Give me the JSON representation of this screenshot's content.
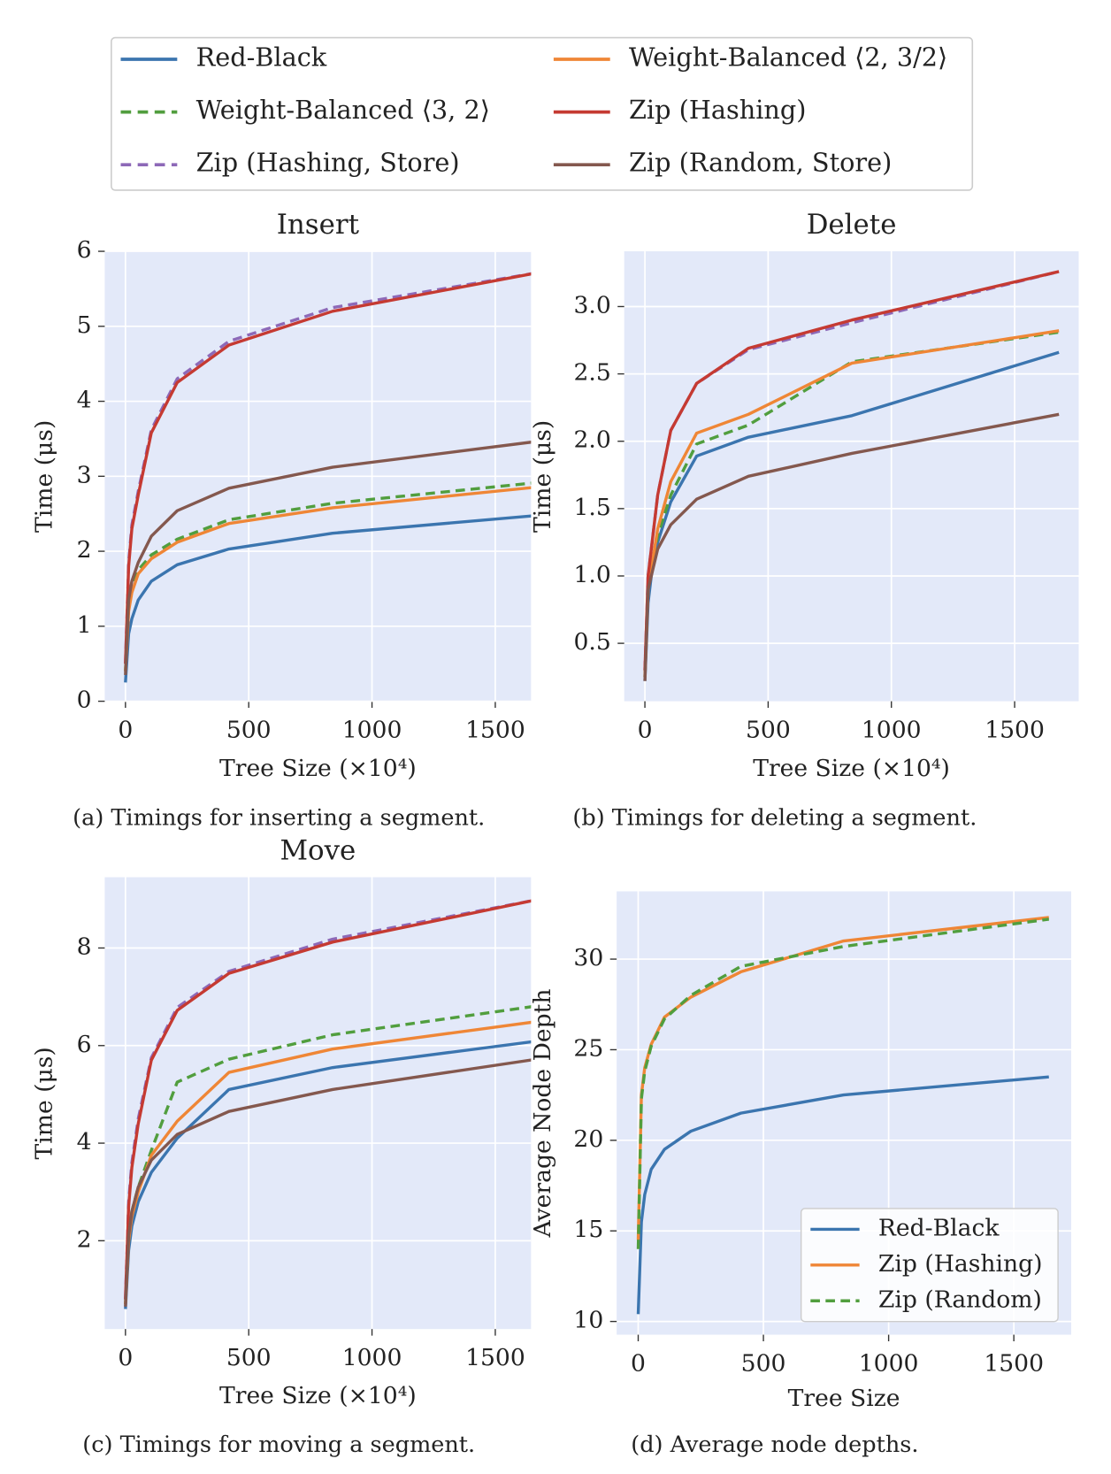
{
  "legend": {
    "columns": 2
  },
  "chart_data": [
    {
      "type": "line",
      "title": "Insert",
      "caption": "(a) Timings for inserting a segment.",
      "xlabel": "Tree Size (×10⁴)",
      "ylabel": "Time (μs)",
      "x": [
        0,
        13,
        26,
        52,
        105,
        210,
        420,
        840,
        1680
      ],
      "xlim": [
        -84,
        1645
      ],
      "ylim": [
        0,
        6
      ],
      "xticks": [
        0,
        500,
        1000,
        1500
      ],
      "yticks": [
        0,
        1,
        2,
        3,
        4,
        5,
        6
      ],
      "grid": true,
      "series": [
        {
          "name": "Red-Black",
          "color": "#3b75af",
          "dash": false,
          "values": [
            0.25,
            0.9,
            1.1,
            1.35,
            1.6,
            1.82,
            2.03,
            2.24,
            2.48
          ]
        },
        {
          "name": "Weight-Balanced ⟨3, 2⟩",
          "color": "#519e3e",
          "dash": true,
          "values": [
            0.4,
            1.25,
            1.5,
            1.75,
            1.95,
            2.16,
            2.42,
            2.64,
            2.92
          ]
        },
        {
          "name": "Zip (Hashing, Store)",
          "color": "#8d69b8",
          "dash": true,
          "values": [
            0.5,
            1.85,
            2.35,
            2.8,
            3.62,
            4.3,
            4.8,
            5.25,
            5.72
          ]
        },
        {
          "name": "Weight-Balanced ⟨2, 3/2⟩",
          "color": "#ef8636",
          "dash": false,
          "values": [
            0.4,
            1.2,
            1.45,
            1.7,
            1.9,
            2.12,
            2.37,
            2.58,
            2.86
          ]
        },
        {
          "name": "Zip (Hashing)",
          "color": "#c53a32",
          "dash": false,
          "values": [
            0.5,
            1.8,
            2.3,
            2.75,
            3.58,
            4.25,
            4.75,
            5.2,
            5.72
          ]
        },
        {
          "name": "Zip (Random, Store)",
          "color": "#84584e",
          "dash": false,
          "values": [
            0.35,
            1.35,
            1.6,
            1.85,
            2.2,
            2.54,
            2.84,
            3.12,
            3.47
          ]
        }
      ]
    },
    {
      "type": "line",
      "title": "Delete",
      "caption": "(b) Timings for deleting a segment.",
      "xlabel": "Tree Size (×10⁴)",
      "ylabel": "Time (μs)",
      "x": [
        0,
        13,
        26,
        52,
        105,
        210,
        420,
        840,
        1680
      ],
      "xlim": [
        -84,
        1760
      ],
      "ylim": [
        0.07,
        3.41
      ],
      "xticks": [
        0,
        500,
        1000,
        1500
      ],
      "yticks": [
        0.5,
        {
          "value": 1,
          "label": "1.0"
        },
        1.5,
        {
          "value": 2,
          "label": "2.0"
        },
        2.5,
        {
          "value": 3,
          "label": "3.0"
        }
      ],
      "grid": true,
      "series": [
        {
          "name": "Red-Black",
          "color": "#3b75af",
          "dash": false,
          "values": [
            0.22,
            0.8,
            1.0,
            1.25,
            1.55,
            1.89,
            2.03,
            2.19,
            2.66
          ]
        },
        {
          "name": "Weight-Balanced ⟨3, 2⟩",
          "color": "#519e3e",
          "dash": true,
          "values": [
            0.25,
            0.9,
            1.05,
            1.3,
            1.6,
            1.98,
            2.12,
            2.59,
            2.81
          ]
        },
        {
          "name": "Zip (Hashing, Store)",
          "color": "#8d69b8",
          "dash": true,
          "values": [
            0.3,
            1.0,
            1.2,
            1.6,
            2.08,
            2.43,
            2.68,
            2.88,
            3.26
          ]
        },
        {
          "name": "Weight-Balanced ⟨2, 3/2⟩",
          "color": "#ef8636",
          "dash": false,
          "values": [
            0.25,
            0.9,
            1.05,
            1.35,
            1.7,
            2.06,
            2.2,
            2.58,
            2.82
          ]
        },
        {
          "name": "Zip (Hashing)",
          "color": "#c53a32",
          "dash": false,
          "values": [
            0.3,
            1.0,
            1.2,
            1.6,
            2.08,
            2.43,
            2.69,
            2.9,
            3.26
          ]
        },
        {
          "name": "Zip (Random, Store)",
          "color": "#84584e",
          "dash": false,
          "values": [
            0.22,
            0.9,
            1.0,
            1.2,
            1.38,
            1.57,
            1.74,
            1.91,
            2.2
          ]
        }
      ]
    },
    {
      "type": "line",
      "title": "Move",
      "caption": "(c) Timings for moving a segment.",
      "xlabel": "Tree Size (×10⁴)",
      "ylabel": "Time (μs)",
      "x": [
        0,
        13,
        26,
        52,
        105,
        210,
        420,
        840,
        1680
      ],
      "xlim": [
        -84,
        1645
      ],
      "ylim": [
        0.19,
        9.45
      ],
      "xticks": [
        0,
        500,
        1000,
        1500
      ],
      "yticks": [
        2,
        4,
        6,
        8
      ],
      "grid": true,
      "series": [
        {
          "name": "Red-Black",
          "color": "#3b75af",
          "dash": false,
          "values": [
            0.6,
            1.8,
            2.3,
            2.8,
            3.4,
            4.1,
            5.1,
            5.55,
            6.1
          ]
        },
        {
          "name": "Weight-Balanced ⟨3, 2⟩",
          "color": "#519e3e",
          "dash": true,
          "values": [
            0.7,
            2.0,
            2.6,
            3.1,
            3.85,
            5.25,
            5.72,
            6.22,
            6.82
          ]
        },
        {
          "name": "Zip (Hashing, Store)",
          "color": "#8d69b8",
          "dash": true,
          "values": [
            0.8,
            2.8,
            3.6,
            4.5,
            5.75,
            6.78,
            7.52,
            8.18,
            9.0
          ]
        },
        {
          "name": "Weight-Balanced ⟨2, 3/2⟩",
          "color": "#ef8636",
          "dash": false,
          "values": [
            0.7,
            2.0,
            2.5,
            3.0,
            3.75,
            4.45,
            5.45,
            5.93,
            6.5
          ]
        },
        {
          "name": "Zip (Hashing)",
          "color": "#c53a32",
          "dash": false,
          "values": [
            0.8,
            2.7,
            3.5,
            4.4,
            5.7,
            6.72,
            7.48,
            8.12,
            9.0
          ]
        },
        {
          "name": "Zip (Random, Store)",
          "color": "#84584e",
          "dash": false,
          "values": [
            0.65,
            2.1,
            2.6,
            3.1,
            3.65,
            4.18,
            4.65,
            5.1,
            5.73
          ]
        }
      ]
    },
    {
      "type": "line",
      "caption": "(d) Average node depths.",
      "xlabel": "Tree Size",
      "ylabel": "Average Node Depth",
      "x": [
        0,
        13,
        26,
        52,
        105,
        210,
        410,
        820,
        1640
      ],
      "xlim": [
        -86,
        1729
      ],
      "ylim": [
        9.27,
        33.74
      ],
      "xticks": [
        0,
        500,
        1000,
        1500
      ],
      "yticks": [
        10,
        15,
        20,
        25,
        30
      ],
      "grid": true,
      "legend": "lower right",
      "series": [
        {
          "name": "Red-Black",
          "color": "#3b75af",
          "dash": false,
          "values": [
            10.4,
            15.5,
            17,
            18.4,
            19.5,
            20.5,
            21.5,
            22.5,
            23.5
          ]
        },
        {
          "name": "Zip (Hashing)",
          "color": "#ef8636",
          "dash": false,
          "values": [
            14.5,
            22.5,
            24,
            25.3,
            26.8,
            27.9,
            29.3,
            31,
            32.3
          ]
        },
        {
          "name": "Zip (Random)",
          "color": "#519e3e",
          "dash": true,
          "values": [
            14,
            22.3,
            23.8,
            25.2,
            26.7,
            28,
            29.6,
            30.7,
            32.2
          ]
        }
      ]
    }
  ]
}
